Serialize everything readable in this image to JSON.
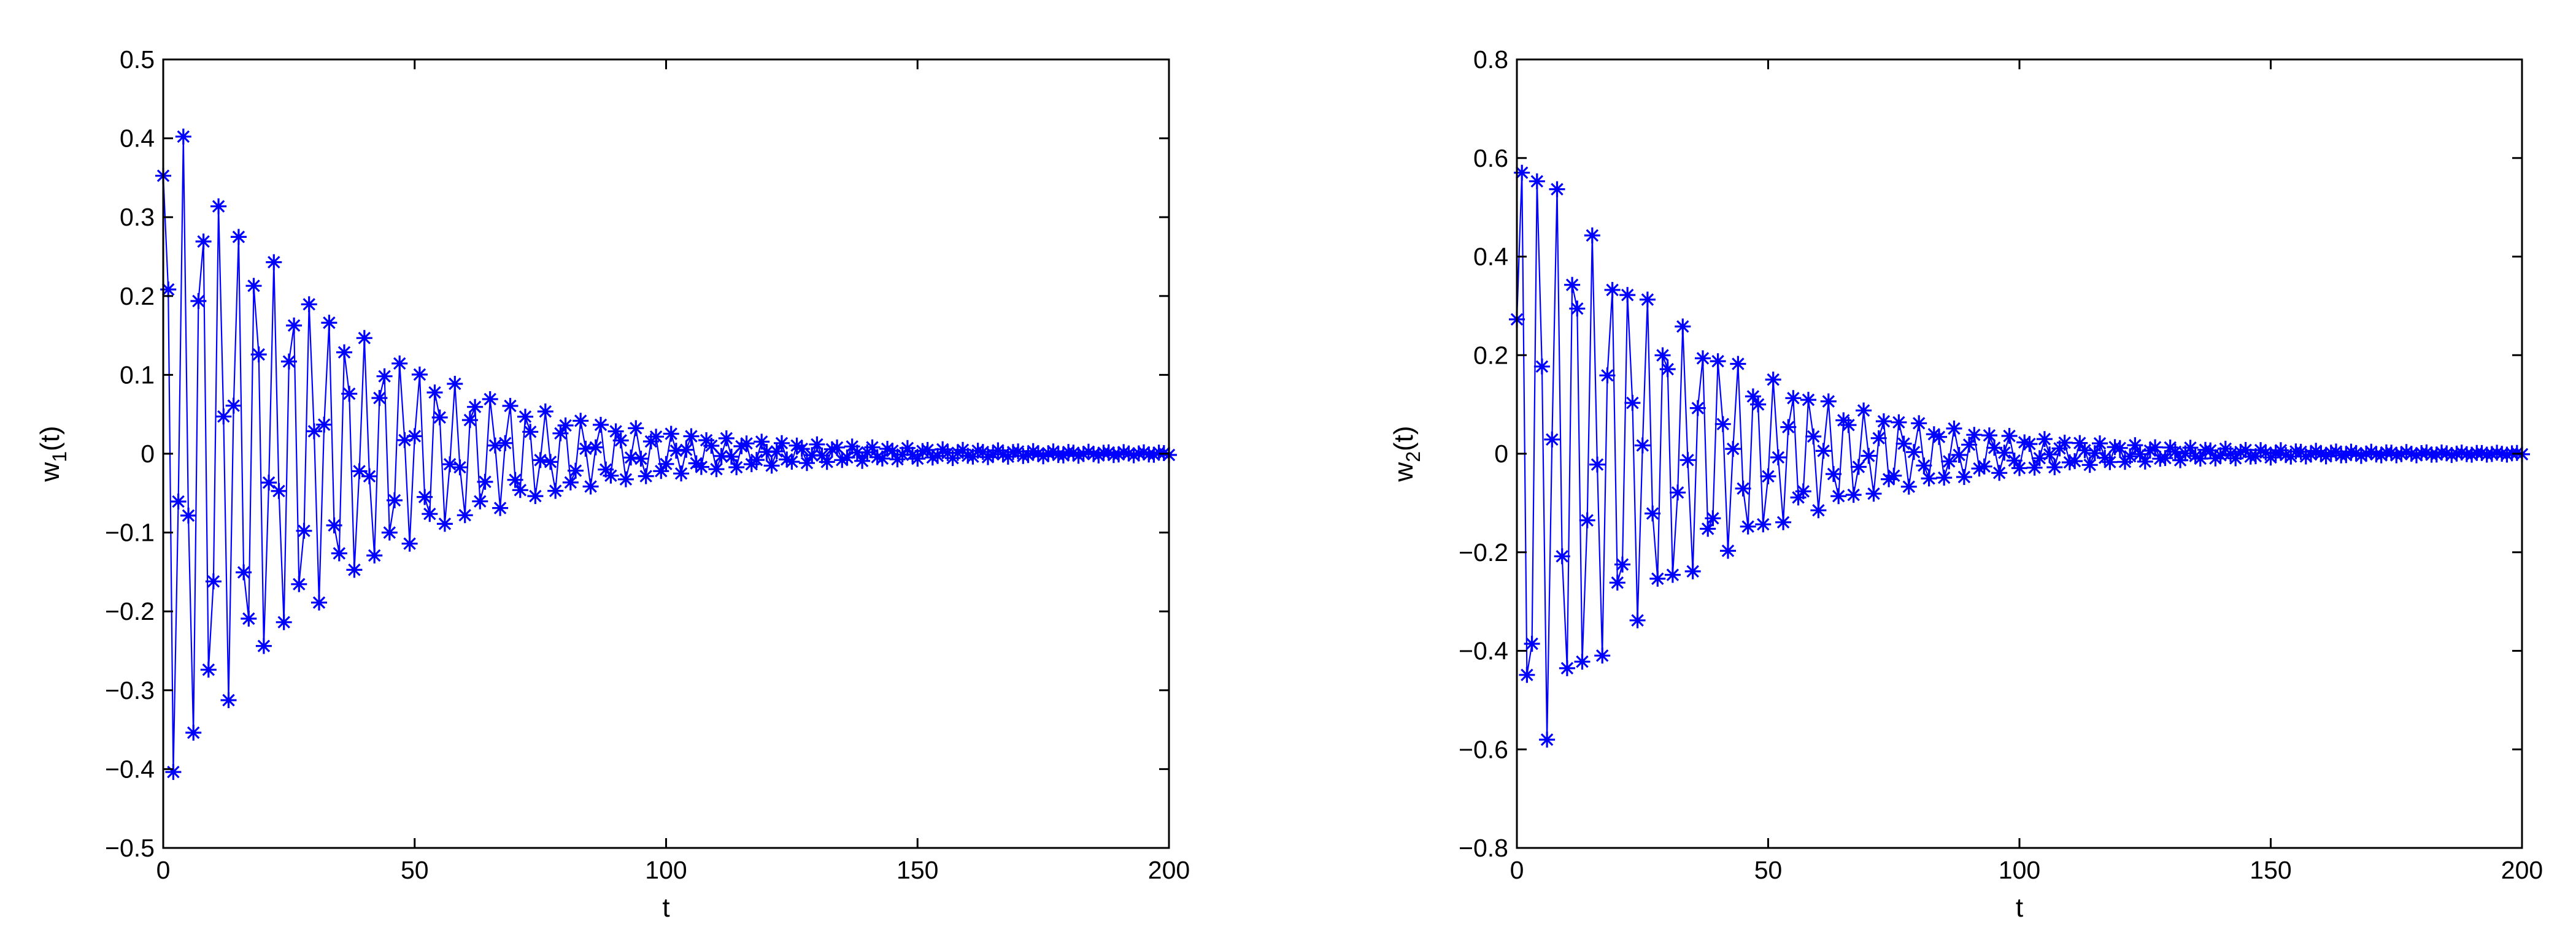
{
  "chart_data": [
    {
      "type": "line",
      "xlabel": "t",
      "ylabel": {
        "base": "w",
        "sub": "1",
        "rest": "(t)"
      },
      "xlim": [
        0,
        200
      ],
      "ylim": [
        -0.5,
        0.5
      ],
      "xticks": [
        0,
        50,
        100,
        150,
        200
      ],
      "yticks": [
        -0.5,
        -0.4,
        -0.3,
        -0.2,
        -0.1,
        0,
        0.1,
        0.2,
        0.3,
        0.4,
        0.5
      ],
      "xtick_labels": [
        "0",
        "50",
        "100",
        "150",
        "200"
      ],
      "ytick_labels": [
        "−0.5",
        "−0.4",
        "−0.3",
        "−0.2",
        "−0.1",
        "0",
        "0.1",
        "0.2",
        "0.3",
        "0.4",
        "0.5"
      ],
      "grid": false,
      "legend": "none",
      "color": "#0000ff",
      "marker": "asterisk",
      "series_model": {
        "description_kind": "damped oscillation sampled at integer t",
        "t_start": 0,
        "t_end": 200,
        "t_step": 1,
        "offset": 0.0,
        "amplitude": 0.45,
        "decay_rate": 0.028,
        "period": 3.6,
        "phase": 0.9
      }
    },
    {
      "type": "line",
      "xlabel": "t",
      "ylabel": {
        "base": "w",
        "sub": "2",
        "rest": "(t)"
      },
      "xlim": [
        0,
        200
      ],
      "ylim": [
        -0.8,
        0.8
      ],
      "xticks": [
        0,
        50,
        100,
        150,
        200
      ],
      "yticks": [
        -0.8,
        -0.6,
        -0.4,
        -0.2,
        0,
        0.2,
        0.4,
        0.6,
        0.8
      ],
      "xtick_labels": [
        "0",
        "50",
        "100",
        "150",
        "200"
      ],
      "ytick_labels": [
        "−0.8",
        "−0.6",
        "−0.4",
        "−0.2",
        "0",
        "0.2",
        "0.4",
        "0.6",
        "0.8"
      ],
      "grid": false,
      "legend": "none",
      "color": "#0000ff",
      "marker": "asterisk",
      "series_model": {
        "description_kind": "damped oscillation sampled at integer t",
        "t_start": 0,
        "t_end": 200,
        "t_step": 1,
        "offset": 0.0,
        "amplitude": 0.7,
        "decay_rate": 0.03,
        "period": 3.6,
        "phase": 0.4
      }
    }
  ]
}
